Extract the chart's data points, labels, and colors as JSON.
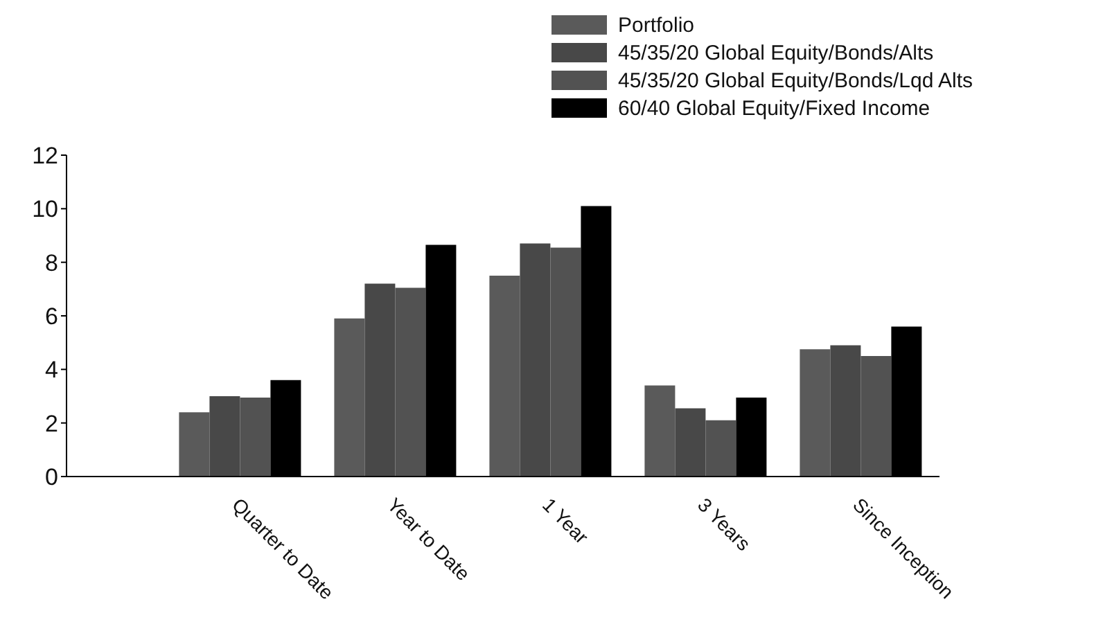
{
  "chart_data": {
    "type": "bar",
    "categories": [
      "Quarter to Date",
      "Year to Date",
      "1 Year",
      "3 Years",
      "Since Inception"
    ],
    "series": [
      {
        "name": "Portfolio",
        "color": "#5a5a5a",
        "values": [
          2.4,
          5.9,
          7.5,
          3.4,
          4.75
        ]
      },
      {
        "name": "45/35/20 Global Equity/Bonds/Alts",
        "color": "#484848",
        "values": [
          3.0,
          7.2,
          8.7,
          2.55,
          4.9
        ]
      },
      {
        "name": "45/35/20 Global Equity/Bonds/Lqd Alts",
        "color": "#525252",
        "values": [
          2.95,
          7.05,
          8.55,
          2.1,
          4.5
        ]
      },
      {
        "name": "60/40 Global Equity/Fixed Income",
        "color": "#000000",
        "values": [
          3.6,
          8.65,
          10.1,
          2.95,
          5.6
        ]
      }
    ],
    "ylim": [
      0,
      12
    ],
    "yticks": [
      0,
      2,
      4,
      6,
      8,
      10,
      12
    ],
    "grid": false,
    "legend": "top right"
  }
}
